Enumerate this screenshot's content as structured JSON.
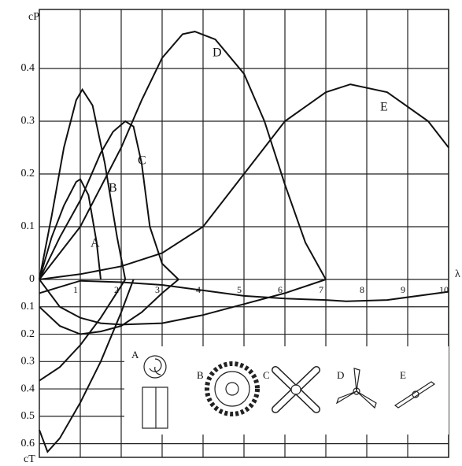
{
  "chart_data": {
    "type": "line",
    "ylabel": "cP",
    "y2label": "cT",
    "xlabel": "λ",
    "xlim": [
      0,
      10
    ],
    "xticks": [
      1,
      2,
      3,
      4,
      5,
      6,
      7,
      8,
      9,
      10
    ],
    "ylim": [
      0,
      0.5
    ],
    "yticks": [
      0,
      0.1,
      0.2,
      0.3,
      0.4
    ],
    "y2lim": [
      0,
      0.65
    ],
    "y2ticks": [
      0.1,
      0.2,
      0.3,
      0.4,
      0.5,
      0.6
    ],
    "grid": true,
    "series": [
      {
        "name": "A",
        "color": "#111111",
        "x": [
          0,
          0.3,
          0.6,
          0.9,
          1.0,
          1.2,
          1.4,
          1.5
        ],
        "values": [
          0,
          0.08,
          0.14,
          0.185,
          0.19,
          0.16,
          0.07,
          0
        ]
      },
      {
        "name": "B",
        "color": "#111111",
        "x": [
          0,
          0.3,
          0.6,
          0.9,
          1.05,
          1.3,
          1.6,
          1.9,
          2.1
        ],
        "values": [
          0,
          0.12,
          0.25,
          0.34,
          0.36,
          0.33,
          0.22,
          0.08,
          0
        ]
      },
      {
        "name": "C",
        "color": "#111111",
        "x": [
          0,
          0.5,
          1,
          1.5,
          1.8,
          2.1,
          2.3,
          2.5,
          2.7,
          3.0,
          3.4
        ],
        "values": [
          0,
          0.08,
          0.15,
          0.24,
          0.28,
          0.3,
          0.29,
          0.22,
          0.1,
          0.03,
          0
        ]
      },
      {
        "name": "D",
        "color": "#111111",
        "x": [
          0,
          1,
          2,
          2.5,
          3,
          3.5,
          3.8,
          4.3,
          5,
          5.5,
          6,
          6.5,
          7
        ],
        "values": [
          0,
          0.1,
          0.25,
          0.34,
          0.42,
          0.465,
          0.47,
          0.455,
          0.39,
          0.3,
          0.18,
          0.07,
          0
        ]
      },
      {
        "name": "E",
        "color": "#111111",
        "x": [
          0,
          1,
          2,
          3,
          4,
          5,
          6,
          7,
          7.6,
          8.5,
          9.5,
          10
        ],
        "values": [
          0,
          0.01,
          0.025,
          0.05,
          0.1,
          0.2,
          0.3,
          0.355,
          0.37,
          0.355,
          0.3,
          0.25
        ]
      },
      {
        "axis": "y2",
        "color": "#111111",
        "x": [
          0,
          0.5,
          1,
          1.5,
          1.8,
          2.1
        ],
        "values": [
          0.37,
          0.32,
          0.24,
          0.14,
          0.07,
          0
        ]
      },
      {
        "axis": "y2",
        "color": "#111111",
        "x": [
          0,
          0.2,
          0.5,
          1,
          1.5,
          2,
          2.3
        ],
        "values": [
          0.55,
          0.63,
          0.58,
          0.45,
          0.3,
          0.12,
          0
        ]
      },
      {
        "axis": "y2",
        "color": "#111111",
        "x": [
          0,
          0.5,
          1,
          1.5,
          2,
          2.5,
          3,
          3.4
        ],
        "values": [
          0.1,
          0.17,
          0.2,
          0.19,
          0.17,
          0.12,
          0.05,
          0
        ]
      },
      {
        "axis": "y2",
        "color": "#111111",
        "x": [
          0,
          0.5,
          1,
          1.5,
          2,
          3,
          4,
          5,
          6,
          7
        ],
        "values": [
          0,
          0.1,
          0.14,
          0.16,
          0.165,
          0.16,
          0.13,
          0.09,
          0.05,
          0
        ]
      },
      {
        "axis": "y2",
        "color": "#111111",
        "x": [
          0,
          1,
          2,
          3,
          4,
          5,
          6,
          7,
          7.5,
          8.5,
          10
        ],
        "values": [
          0.05,
          0.005,
          0.01,
          0.02,
          0.04,
          0.06,
          0.07,
          0.075,
          0.08,
          0.075,
          0.045
        ]
      }
    ]
  }
}
